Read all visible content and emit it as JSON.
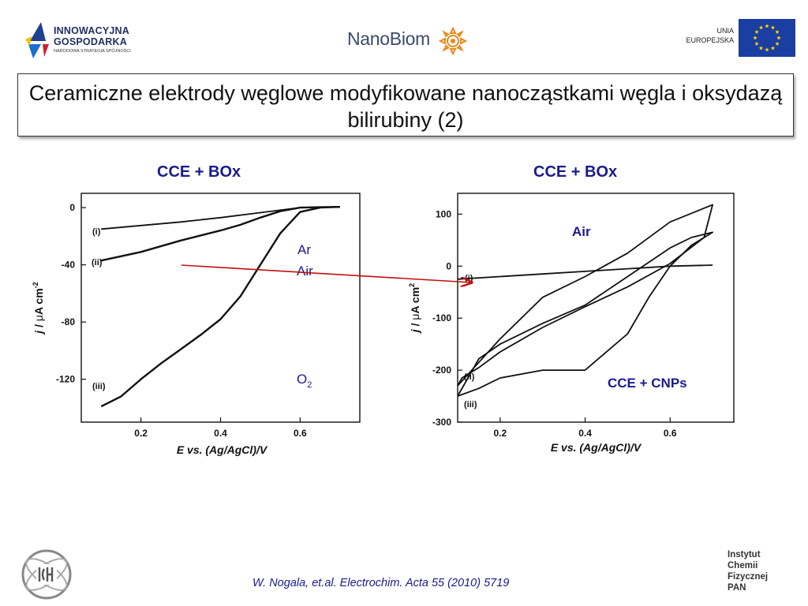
{
  "header": {
    "logo_left": {
      "line1": "INNOWACYJNA",
      "line2": "GOSPODARKA",
      "line3": "NARODOWA STRATEGIA SPÓJNOŚCI"
    },
    "logo_center": {
      "part1": "Nano",
      "part2": "Biom"
    },
    "logo_right": {
      "line1": "UNIA",
      "line2": "EUROPEJSKA"
    },
    "colors": {
      "navy": "#1f2f5f",
      "eu_blue": "#1a3fa0",
      "eu_star": "#ffd700",
      "nano_orange": "#e8891a"
    }
  },
  "title": "Ceramiczne elektrody węglowe modyfikowane nanocząstkami węgla i oksydazą bilirubiny (2)",
  "chart_data": [
    {
      "type": "line",
      "panel_title": "CCE + BOx",
      "xlabel": "E vs. (Ag/AgCl)/V",
      "ylabel": "j / μA cm-2",
      "ylabel_parts": {
        "italic": "j",
        "slash": " / ",
        "mu": "μ",
        "unit": "A cm",
        "sup": "-2"
      },
      "xlim": [
        0.05,
        0.75
      ],
      "ylim": [
        -150,
        10
      ],
      "xticks": [
        0.2,
        0.4,
        0.6
      ],
      "yticks": [
        0,
        -40,
        -80,
        -120
      ],
      "legend_text": {
        "ar": "Ar",
        "air": "Air",
        "o2_base": "O",
        "o2_sub": "2"
      },
      "series": [
        {
          "name": "(i)",
          "x": [
            0.1,
            0.2,
            0.3,
            0.4,
            0.5,
            0.6,
            0.65,
            0.7
          ],
          "y": [
            -15,
            -12.5,
            -10,
            -7,
            -3.5,
            0,
            0.3,
            0.5
          ]
        },
        {
          "name": "(ii)",
          "x": [
            0.1,
            0.2,
            0.3,
            0.4,
            0.45,
            0.5,
            0.55,
            0.6,
            0.65,
            0.7
          ],
          "y": [
            -37,
            -31,
            -23,
            -16,
            -12,
            -7,
            -2.5,
            0,
            0.3,
            0.5
          ]
        },
        {
          "name": "(iii)",
          "x": [
            0.1,
            0.15,
            0.2,
            0.25,
            0.3,
            0.35,
            0.4,
            0.45,
            0.5,
            0.55,
            0.6,
            0.65,
            0.7
          ],
          "y": [
            -139,
            -132,
            -120,
            -109,
            -99,
            -89,
            -78,
            -62,
            -40,
            -18,
            -3,
            0,
            0.5
          ]
        }
      ]
    },
    {
      "type": "line",
      "panel_title": "CCE + BOx",
      "xlabel": "E vs. (Ag/AgCl)/V",
      "ylabel": "j / μA cm2",
      "ylabel_parts": {
        "italic": "j",
        "slash": " / ",
        "mu": "μ",
        "unit": "A cm",
        "sup": "2"
      },
      "xlim": [
        0.1,
        0.75
      ],
      "ylim": [
        -300,
        140
      ],
      "xticks": [
        0.2,
        0.4,
        0.6
      ],
      "yticks": [
        100,
        0,
        -100,
        -200,
        -300
      ],
      "annotation_air": "Air",
      "annotation_cnp": "CCE + CNPs",
      "series": [
        {
          "name": "(i)",
          "x": [
            0.1,
            0.2,
            0.3,
            0.4,
            0.5,
            0.6,
            0.7
          ],
          "y": [
            -25,
            -20,
            -15,
            -10,
            -5,
            0,
            2
          ]
        },
        {
          "name": "(ii)",
          "x": [
            0.1,
            0.15,
            0.2,
            0.3,
            0.4,
            0.5,
            0.6,
            0.7,
            0.68,
            0.6,
            0.5,
            0.4,
            0.3,
            0.2,
            0.15,
            0.11,
            0.1
          ],
          "y": [
            -230,
            -185,
            -140,
            -60,
            -20,
            25,
            85,
            118,
            55,
            5,
            -40,
            -78,
            -118,
            -165,
            -195,
            -215,
            -230
          ]
        },
        {
          "name": "(iii)",
          "x": [
            0.1,
            0.15,
            0.2,
            0.3,
            0.4,
            0.5,
            0.55,
            0.6,
            0.65,
            0.7,
            0.65,
            0.6,
            0.5,
            0.4,
            0.3,
            0.2,
            0.15,
            0.1
          ],
          "y": [
            -250,
            -235,
            -215,
            -200,
            -200,
            -130,
            -60,
            0,
            40,
            65,
            55,
            35,
            -20,
            -75,
            -110,
            -150,
            -178,
            -250
          ]
        }
      ]
    }
  ],
  "footer": {
    "citation": "W. Nogala,  et.al. Electrochim. Acta 55 (2010) 5719",
    "institute": [
      "Instytut",
      "Chemii",
      "Fizycznej",
      "PAN"
    ]
  }
}
